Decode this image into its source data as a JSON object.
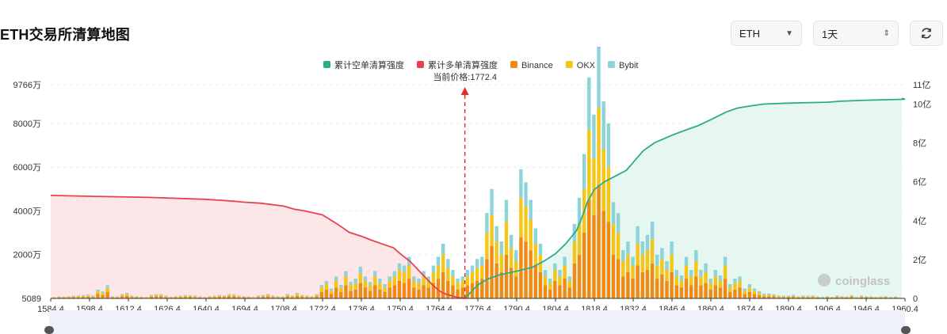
{
  "title": "ETH交易所清算地图",
  "controls": {
    "coin": "ETH",
    "period": "1天"
  },
  "watermark": "coinglass",
  "colors": {
    "short_line": "#2bac8c",
    "short_fill": "#e6f6f0",
    "long_line": "#e6434f",
    "long_fill": "#fde6e8",
    "binance": "#f08a12",
    "okx": "#f5c518",
    "bybit": "#8dd3da"
  },
  "chart_data": {
    "type": "bar",
    "title": "",
    "legend": [
      "累计空单清算强度",
      "累计多单清算强度",
      "Binance",
      "OKX",
      "Bybit"
    ],
    "annotation": "当前价格:1772.4",
    "current_price": 1772.4,
    "x_ticks": [
      "1584.4",
      "1598.4",
      "1612.4",
      "1626.4",
      "1640.4",
      "1694.4",
      "1708.4",
      "1722.4",
      "1736.4",
      "1750.4",
      "1764.4",
      "1776.4",
      "1790.4",
      "1804.4",
      "1818.4",
      "1832.4",
      "1846.4",
      "1860.4",
      "1874.4",
      "1890.4",
      "1906.4",
      "1946.4",
      "1960.4"
    ],
    "y_left_ticks": [
      "9766万",
      "8000万",
      "6000万",
      "4000万",
      "2000万",
      "5089"
    ],
    "y_left_values": [
      9766,
      8000,
      6000,
      4000,
      2000,
      0.5089
    ],
    "y_left_range": [
      0.5089,
      9766
    ],
    "y_right_ticks": [
      "11亿",
      "10亿",
      "8亿",
      "6亿",
      "4亿",
      "2亿",
      "0"
    ],
    "y_right_values": [
      11,
      10,
      8,
      6,
      4,
      2,
      0
    ],
    "y_right_range": [
      0,
      11
    ],
    "bars_unit": "万",
    "series": [
      {
        "name": "Binance",
        "values": [
          30,
          40,
          45,
          50,
          55,
          60,
          70,
          80,
          60,
          200,
          150,
          300,
          50,
          40,
          100,
          120,
          60,
          50,
          40,
          30,
          80,
          90,
          100,
          60,
          40,
          50,
          60,
          80,
          70,
          60,
          40,
          30,
          50,
          60,
          80,
          70,
          100,
          90,
          60,
          50,
          40,
          30,
          60,
          80,
          100,
          60,
          50,
          40,
          100,
          60,
          120,
          80,
          60,
          50,
          100,
          300,
          400,
          200,
          500,
          300,
          600,
          350,
          400,
          700,
          500,
          350,
          600,
          400,
          300,
          500,
          600,
          800,
          700,
          900,
          500,
          400,
          600,
          500,
          700,
          900,
          1200,
          800,
          600,
          400,
          500,
          600,
          700,
          800,
          900,
          1800,
          2400,
          1600,
          1200,
          2000,
          1400,
          1000,
          2800,
          2600,
          2200,
          1500,
          1200,
          600,
          400,
          800,
          600,
          900,
          500,
          1600,
          2000,
          3000,
          4500,
          3800,
          5200,
          4000,
          3500,
          2000,
          1800,
          1000,
          1200,
          900,
          1500,
          1200,
          1300,
          1600,
          900,
          1100,
          800,
          1200,
          600,
          500,
          900,
          600,
          1000,
          600,
          700,
          400,
          600,
          500,
          900,
          300,
          400,
          500,
          200,
          300,
          200,
          150,
          100,
          100,
          90,
          60,
          50,
          60,
          70,
          40,
          60,
          50,
          60,
          40,
          30,
          50,
          30,
          60,
          50,
          40,
          70,
          30,
          60,
          50,
          40,
          30,
          40,
          50,
          30,
          40,
          20
        ]
      },
      {
        "name": "OKX",
        "values": [
          20,
          30,
          25,
          30,
          40,
          45,
          50,
          55,
          40,
          120,
          100,
          180,
          30,
          30,
          60,
          80,
          40,
          30,
          20,
          20,
          50,
          60,
          60,
          40,
          20,
          30,
          40,
          50,
          40,
          40,
          30,
          20,
          30,
          40,
          50,
          40,
          60,
          60,
          40,
          30,
          30,
          20,
          40,
          50,
          60,
          40,
          30,
          30,
          60,
          40,
          80,
          50,
          40,
          30,
          60,
          200,
          250,
          150,
          300,
          200,
          400,
          250,
          300,
          450,
          300,
          250,
          400,
          300,
          200,
          300,
          400,
          500,
          500,
          600,
          300,
          300,
          400,
          300,
          500,
          600,
          800,
          600,
          400,
          300,
          300,
          400,
          500,
          600,
          600,
          1200,
          1400,
          1000,
          800,
          1500,
          900,
          700,
          1800,
          1600,
          1400,
          1000,
          800,
          400,
          300,
          500,
          400,
          600,
          300,
          1000,
          1400,
          2000,
          3200,
          2600,
          3500,
          2800,
          2500,
          1400,
          1200,
          700,
          800,
          600,
          1000,
          800,
          900,
          1100,
          600,
          700,
          500,
          800,
          400,
          300,
          600,
          400,
          700,
          400,
          500,
          300,
          400,
          300,
          600,
          200,
          300,
          300,
          150,
          200,
          150,
          100,
          70,
          70,
          60,
          40,
          40,
          40,
          50,
          30,
          40,
          40,
          40,
          30,
          20,
          30,
          20,
          40,
          30,
          30,
          50,
          20,
          40,
          30,
          30,
          20,
          30,
          30,
          20,
          30,
          15
        ]
      },
      {
        "name": "Bybit",
        "values": [
          10,
          20,
          15,
          20,
          25,
          30,
          35,
          40,
          30,
          80,
          70,
          120,
          20,
          20,
          40,
          50,
          30,
          20,
          15,
          15,
          30,
          40,
          40,
          30,
          15,
          20,
          25,
          30,
          30,
          25,
          20,
          15,
          20,
          25,
          30,
          25,
          40,
          40,
          30,
          20,
          20,
          15,
          30,
          30,
          40,
          30,
          20,
          20,
          40,
          30,
          50,
          30,
          30,
          20,
          40,
          120,
          150,
          100,
          200,
          120,
          250,
          150,
          200,
          300,
          200,
          150,
          250,
          200,
          150,
          200,
          250,
          300,
          300,
          400,
          200,
          200,
          250,
          200,
          300,
          400,
          500,
          400,
          300,
          200,
          200,
          300,
          300,
          400,
          400,
          900,
          1200,
          700,
          600,
          1000,
          600,
          500,
          1300,
          1100,
          900,
          700,
          500,
          300,
          200,
          300,
          300,
          400,
          200,
          800,
          1200,
          1600,
          2400,
          2000,
          2800,
          2200,
          2000,
          1000,
          900,
          500,
          600,
          400,
          800,
          600,
          700,
          800,
          500,
          500,
          400,
          600,
          300,
          250,
          400,
          300,
          500,
          300,
          400,
          200,
          300,
          250,
          400,
          150,
          200,
          200,
          100,
          150,
          100,
          80,
          50,
          50,
          40,
          30,
          30,
          30,
          40,
          20,
          30,
          30,
          30,
          20,
          15,
          20,
          15,
          30,
          20,
          20,
          30,
          15,
          30,
          20,
          20,
          15,
          20,
          20,
          15,
          20,
          10
        ]
      },
      {
        "name": "累计多单清算强度",
        "axis": "right",
        "x": [
          1584.4,
          1600,
          1620,
          1640,
          1660,
          1680,
          1694.4,
          1700,
          1708.4,
          1712,
          1716,
          1722.4,
          1728,
          1732,
          1736.4,
          1740,
          1744,
          1748,
          1750.4,
          1754,
          1758,
          1762,
          1764.4,
          1766,
          1768,
          1770,
          1772.4
        ],
        "values": [
          5.3,
          5.25,
          5.2,
          5.1,
          5.05,
          5.0,
          4.95,
          4.9,
          4.75,
          4.6,
          4.5,
          4.3,
          3.8,
          3.4,
          3.2,
          3.0,
          2.8,
          2.6,
          2.3,
          1.9,
          1.3,
          0.7,
          0.4,
          0.25,
          0.15,
          0.05,
          0
        ]
      },
      {
        "name": "累计空单清算强度",
        "axis": "right",
        "x": [
          1772.4,
          1776.4,
          1780,
          1784,
          1790.4,
          1796,
          1800,
          1804.4,
          1808,
          1812,
          1814,
          1816,
          1818.4,
          1822,
          1826,
          1830,
          1832.4,
          1836,
          1840,
          1846.4,
          1852,
          1856,
          1860.4,
          1866,
          1870,
          1874.4,
          1880,
          1890.4,
          1906.4,
          1920,
          1946.4,
          1960.4,
          1975
        ],
        "values": [
          0,
          0.7,
          1.0,
          1.2,
          1.4,
          1.6,
          1.9,
          2.3,
          2.8,
          3.5,
          4.2,
          5.0,
          5.6,
          6.0,
          6.3,
          6.6,
          7.0,
          7.6,
          8.0,
          8.4,
          8.7,
          8.9,
          9.2,
          9.6,
          9.8,
          9.9,
          10.0,
          10.05,
          10.1,
          10.15,
          10.2,
          10.25,
          10.3
        ]
      }
    ]
  }
}
